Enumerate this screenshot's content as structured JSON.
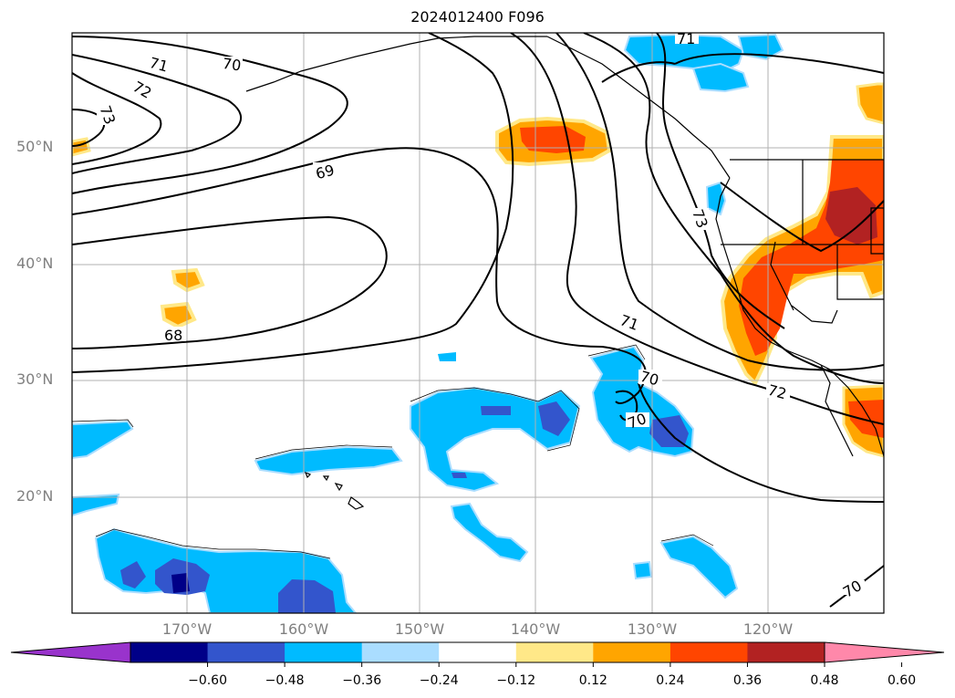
{
  "title": "2024012400 F096",
  "map": {
    "lat_labels": [
      "50°N",
      "40°N",
      "30°N",
      "20°N"
    ],
    "lon_labels": [
      "170°W",
      "160°W",
      "150°W",
      "140°W",
      "130°W",
      "120°W"
    ],
    "contour_labels": [
      "71",
      "70",
      "72",
      "73",
      "69",
      "68",
      "71",
      "70",
      "70",
      "72",
      "73",
      "70",
      "71"
    ]
  },
  "colorbar": {
    "ticks": [
      "−0.60",
      "−0.48",
      "−0.36",
      "−0.24",
      "−0.12",
      "0.12",
      "0.24",
      "0.36",
      "0.48",
      "0.60"
    ],
    "colors": [
      "#9933cc",
      "#000088",
      "#3355cc",
      "#00bbff",
      "#aaddff",
      "#ffffff",
      "#ffe888",
      "#ffa500",
      "#ff4500",
      "#b22222",
      "#ff88aa"
    ]
  }
}
